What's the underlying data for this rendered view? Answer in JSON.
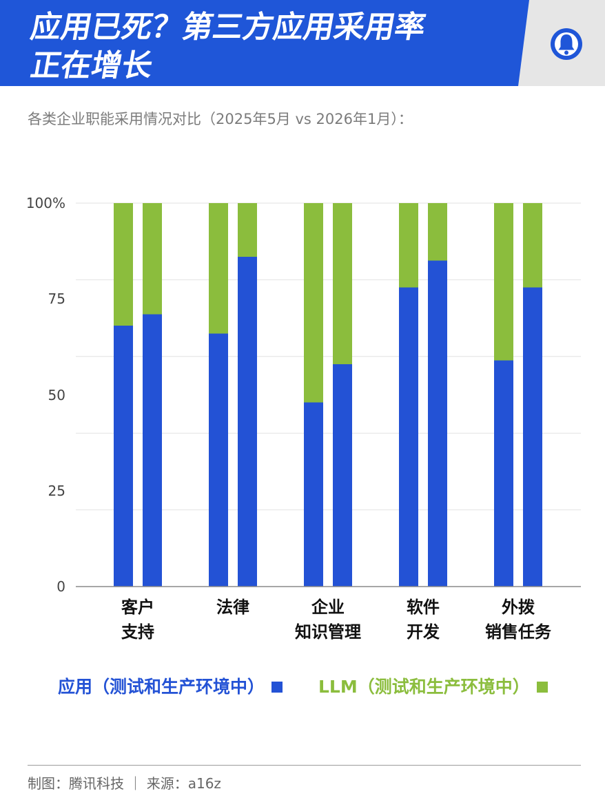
{
  "header": {
    "logo_icon": "tencent-tech-logo-icon",
    "colors": {
      "banner": "#1f56d8",
      "side": "#e6e6e6",
      "logo": "#1f56d8"
    }
  },
  "chart_data": {
    "type": "bar",
    "stacked": true,
    "stack_mode": "percent",
    "title_lines": [
      "应用已死？第三方应用采用率",
      "正在增长"
    ],
    "subtitle": "各类企业职能采用情况对比（2025年5月 vs 2026年1月）：",
    "xlabel": "",
    "ylabel": "",
    "categories": [
      "客户\n支持",
      "法律",
      "企业\n知识管理",
      "软件\n开发",
      "外拨\n销售任务"
    ],
    "series": [
      {
        "name": "应用（测试和生产环境中）",
        "color": "#2352d5",
        "values": [
          [
            68,
            71
          ],
          [
            66,
            86
          ],
          [
            48,
            58
          ],
          [
            78,
            85
          ],
          [
            59,
            78
          ]
        ]
      },
      {
        "name": "LLM（测试和生产环境中）",
        "color": "#8bbd3d",
        "values": [
          [
            32,
            29
          ],
          [
            34,
            14
          ],
          [
            52,
            42
          ],
          [
            22,
            15
          ],
          [
            41,
            22
          ]
        ]
      }
    ],
    "ylim": [
      0,
      100
    ],
    "yticks": [
      0,
      25,
      50,
      75,
      100
    ],
    "ytick_labels": [
      "0",
      "25",
      "50",
      "75",
      "100%"
    ],
    "grid": true,
    "grid_values": [
      0,
      20,
      40,
      60,
      80,
      100
    ],
    "legend_position": "bottom"
  },
  "footer": {
    "text": "制图：腾讯科技 ｜ 来源：a16z"
  }
}
